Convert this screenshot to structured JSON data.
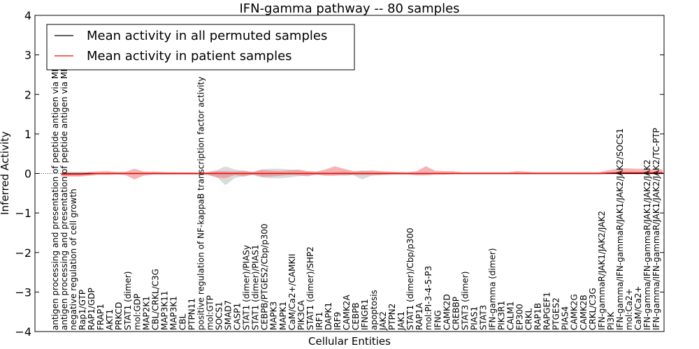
{
  "chart_data": {
    "type": "line",
    "title": "IFN-gamma pathway -- 80 samples",
    "xlabel": "Cellular Entities",
    "ylabel": "Inferred Activity",
    "ylim": [
      -4,
      4
    ],
    "yticks": [
      -4,
      -3,
      -2,
      -1,
      0,
      1,
      2,
      3,
      4
    ],
    "grid": false,
    "legend_location": "upper-left",
    "categories": [
      "antigen processing and presentation of peptide antigen via MHC class I",
      "antigen processing and presentation of peptide antigen via MHC class II",
      "negative regulation of cell growth",
      "Rap1/GTP",
      "RAP1/GDP",
      "FRAP1",
      "AKT1",
      "PRKCD",
      "STAT1 (dimer)",
      "mol:GDP",
      "MAP2K1",
      "CBL/CRKL/C3G",
      "MAP3K11",
      "MAP3K1",
      "CBL",
      "PTPN11",
      "positive regulation of NF-kappaB transcription factor activity",
      "mol:GTP",
      "SOCS1",
      "SMAD7",
      "CASP1",
      "STAT1 (dimer)/PIASy",
      "STAT1 (dimer)/PIAS1",
      "CEBPB/PTGES2/Cbp/p300",
      "MAPK3",
      "MAPK1",
      "CaM/Ca2+/CAMKII",
      "PIK3CA",
      "STAT1 (dimer)/SHP2",
      "IRF1",
      "DAPK1",
      "IRF9",
      "CAMK2A",
      "CEBPB",
      "IFNGR1",
      "apoptosis",
      "JAK2",
      "PTPN2",
      "JAK1",
      "STAT1 (dimer)/Cbp/p300",
      "RAP1A",
      "mol:PI-3-4-5-P3",
      "IFNG",
      "CAMK2D",
      "CREBBP",
      "STAT3 (dimer)",
      "PIAS1",
      "STAT3",
      "IFN-gamma (dimer)",
      "PIK3R1",
      "CALM1",
      "EP300",
      "CRKL",
      "RAP1B",
      "RAPGEF1",
      "PTGES2",
      "PIAS4",
      "CAMK2G",
      "CAMK2B",
      "CRKL/C3G",
      "IFN-gammaR/JAK1/JAK2/JAK2",
      "PI3K",
      "IFN-gamma/IFN-gammaR/JAK1/JAK2/JAK2/SOCS1",
      "mol:Ca2+",
      "CaM/Ca2+",
      "IFN-gamma/IFN-gammaR/JAK1/JAK2/JAK2",
      "IFN-gamma/IFN-gammaR/JAK1/JAK2/JAK2/TC-PTP"
    ],
    "series": [
      {
        "name": "Mean activity in all permuted samples",
        "color": "#000000",
        "values": [
          -0.01,
          -0.01,
          -0.01,
          0,
          0,
          0,
          0,
          0,
          0,
          0,
          0,
          0,
          0,
          0,
          0,
          0,
          0,
          0,
          0,
          0,
          0,
          0,
          0,
          0,
          0,
          0,
          0,
          0,
          0,
          0,
          0,
          0,
          0,
          0,
          0,
          0,
          0,
          0,
          0,
          0,
          0,
          0,
          0,
          0,
          0,
          0,
          0,
          0,
          0,
          0,
          0,
          0,
          0,
          0,
          0,
          0,
          0,
          0,
          0,
          0,
          0,
          0,
          0,
          0,
          0,
          0,
          0
        ],
        "lower": [
          -0.06,
          -0.06,
          -0.06,
          -0.04,
          -0.02,
          -0.02,
          -0.02,
          -0.02,
          -0.02,
          -0.02,
          -0.02,
          -0.02,
          -0.02,
          -0.02,
          -0.02,
          -0.02,
          -0.03,
          -0.08,
          -0.3,
          -0.12,
          -0.06,
          -0.04,
          -0.1,
          -0.12,
          -0.12,
          -0.1,
          -0.07,
          -0.05,
          -0.04,
          -0.03,
          -0.03,
          -0.06,
          -0.04,
          -0.15,
          -0.06,
          -0.04,
          -0.03,
          -0.02,
          -0.02,
          -0.02,
          -0.02,
          -0.02,
          -0.02,
          -0.02,
          -0.02,
          -0.02,
          -0.02,
          -0.02,
          -0.02,
          -0.02,
          -0.02,
          -0.02,
          -0.02,
          -0.02,
          -0.02,
          -0.02,
          -0.02,
          -0.02,
          -0.02,
          -0.02,
          -0.02,
          -0.02,
          -0.02,
          -0.02,
          -0.02,
          -0.02,
          -0.02
        ],
        "upper": [
          0.04,
          0.04,
          0.04,
          0.03,
          0.02,
          0.02,
          0.02,
          0.02,
          0.02,
          0.02,
          0.02,
          0.02,
          0.02,
          0.02,
          0.02,
          0.02,
          0.04,
          0.08,
          0.18,
          0.1,
          0.06,
          0.04,
          0.1,
          0.12,
          0.12,
          0.1,
          0.07,
          0.05,
          0.04,
          0.03,
          0.03,
          0.06,
          0.04,
          0.08,
          0.04,
          0.04,
          0.03,
          0.02,
          0.02,
          0.02,
          0.02,
          0.02,
          0.02,
          0.02,
          0.02,
          0.02,
          0.02,
          0.02,
          0.02,
          0.02,
          0.02,
          0.02,
          0.02,
          0.02,
          0.02,
          0.02,
          0.02,
          0.02,
          0.02,
          0.02,
          0.02,
          0.02,
          0.02,
          0.02,
          0.02,
          0.02,
          0.02
        ]
      },
      {
        "name": "Mean activity in patient samples",
        "color": "#ff0000",
        "values": [
          -0.02,
          -0.02,
          -0.02,
          -0.01,
          0,
          0,
          0,
          0,
          0,
          0,
          0,
          0,
          0,
          0,
          0,
          0,
          0,
          0,
          0,
          0,
          0,
          0,
          0,
          0,
          0,
          0,
          0,
          0,
          0,
          0,
          0,
          0,
          0,
          0,
          0,
          0,
          0,
          0,
          0,
          0,
          0,
          0,
          0,
          0,
          0,
          0,
          0,
          0,
          0,
          0,
          0,
          0,
          0,
          0,
          0,
          0,
          0,
          0,
          0,
          0,
          0.01,
          0.02,
          0.02,
          0.02,
          0.02,
          0.02,
          0.02
        ],
        "lower": [
          -0.08,
          -0.08,
          -0.08,
          -0.06,
          -0.04,
          -0.04,
          -0.03,
          -0.04,
          -0.15,
          -0.06,
          -0.03,
          -0.03,
          -0.03,
          -0.03,
          -0.03,
          -0.03,
          -0.03,
          -0.1,
          -0.12,
          -0.04,
          -0.08,
          -0.03,
          -0.08,
          -0.08,
          -0.06,
          -0.04,
          -0.05,
          -0.07,
          -0.03,
          -0.06,
          -0.06,
          -0.04,
          -0.04,
          -0.04,
          -0.04,
          -0.04,
          -0.03,
          -0.03,
          -0.03,
          -0.05,
          -0.05,
          -0.03,
          -0.03,
          -0.02,
          -0.02,
          -0.02,
          -0.02,
          -0.02,
          -0.02,
          -0.02,
          -0.02,
          -0.02,
          -0.02,
          -0.02,
          -0.02,
          -0.02,
          -0.02,
          -0.02,
          -0.02,
          -0.02,
          -0.01,
          -0.01,
          -0.01,
          -0.01,
          -0.01,
          -0.01,
          -0.01
        ],
        "upper": [
          0.03,
          0.03,
          0.03,
          0.04,
          0.05,
          0.06,
          0.04,
          0.04,
          0.12,
          0.05,
          0.05,
          0.04,
          0.03,
          0.03,
          0.03,
          0.02,
          0.03,
          0.06,
          0.06,
          0.05,
          0.07,
          0.04,
          0.09,
          0.07,
          0.06,
          0.08,
          0.1,
          0.06,
          0.05,
          0.1,
          0.18,
          0.12,
          0.06,
          0.06,
          0.08,
          0.06,
          0.05,
          0.04,
          0.03,
          0.06,
          0.18,
          0.07,
          0.06,
          0.06,
          0.03,
          0.03,
          0.03,
          0.03,
          0.03,
          0.03,
          0.06,
          0.05,
          0.03,
          0.03,
          0.03,
          0.03,
          0.03,
          0.03,
          0.03,
          0.03,
          0.08,
          0.12,
          0.13,
          0.12,
          0.12,
          0.1,
          0.1
        ]
      }
    ]
  }
}
